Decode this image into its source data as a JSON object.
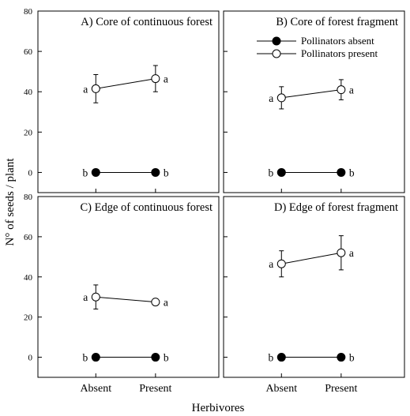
{
  "chart_data": {
    "type": "line",
    "ylabel": "N° of seeds / plant",
    "xlabel": "Herbivores",
    "categories": [
      "Absent",
      "Present"
    ],
    "ylim": [
      -10,
      80
    ],
    "yticks": [
      0,
      20,
      40,
      60,
      80
    ],
    "legend": {
      "panel": "B",
      "placement": "top-right",
      "entries": [
        {
          "name": "Pollinators absent",
          "marker": "filled-circle"
        },
        {
          "name": "Pollinators present",
          "marker": "open-circle"
        }
      ]
    },
    "panels": [
      {
        "id": "A",
        "title": "A) Core of continuous forest",
        "show_xticks": false,
        "series": [
          {
            "name": "Pollinators absent",
            "values": [
              0,
              0
            ],
            "errors": [
              0,
              0
            ],
            "labels": [
              "b",
              "b"
            ]
          },
          {
            "name": "Pollinators present",
            "values": [
              41.5,
              46.5
            ],
            "errors": [
              7,
              6.5
            ],
            "labels": [
              "a",
              "a"
            ]
          }
        ]
      },
      {
        "id": "B",
        "title": "B) Core of forest fragment",
        "show_xticks": false,
        "series": [
          {
            "name": "Pollinators absent",
            "values": [
              0,
              0
            ],
            "errors": [
              0,
              0
            ],
            "labels": [
              "b",
              "b"
            ]
          },
          {
            "name": "Pollinators present",
            "values": [
              37,
              41
            ],
            "errors": [
              5.5,
              5
            ],
            "labels": [
              "a",
              "a"
            ]
          }
        ]
      },
      {
        "id": "C",
        "title": "C) Edge of continuous forest",
        "show_xticks": true,
        "series": [
          {
            "name": "Pollinators absent",
            "values": [
              0,
              0
            ],
            "errors": [
              0,
              0
            ],
            "labels": [
              "b",
              "b"
            ]
          },
          {
            "name": "Pollinators present",
            "values": [
              30,
              27.5
            ],
            "errors": [
              6,
              1.5
            ],
            "labels": [
              "a",
              "a"
            ]
          }
        ]
      },
      {
        "id": "D",
        "title": "D) Edge of forest fragment",
        "show_xticks": true,
        "series": [
          {
            "name": "Pollinators absent",
            "values": [
              0,
              0
            ],
            "errors": [
              0,
              0
            ],
            "labels": [
              "b",
              "b"
            ]
          },
          {
            "name": "Pollinators present",
            "values": [
              46.5,
              52
            ],
            "errors": [
              6.5,
              8.5
            ],
            "labels": [
              "a",
              "a"
            ]
          }
        ]
      }
    ]
  }
}
